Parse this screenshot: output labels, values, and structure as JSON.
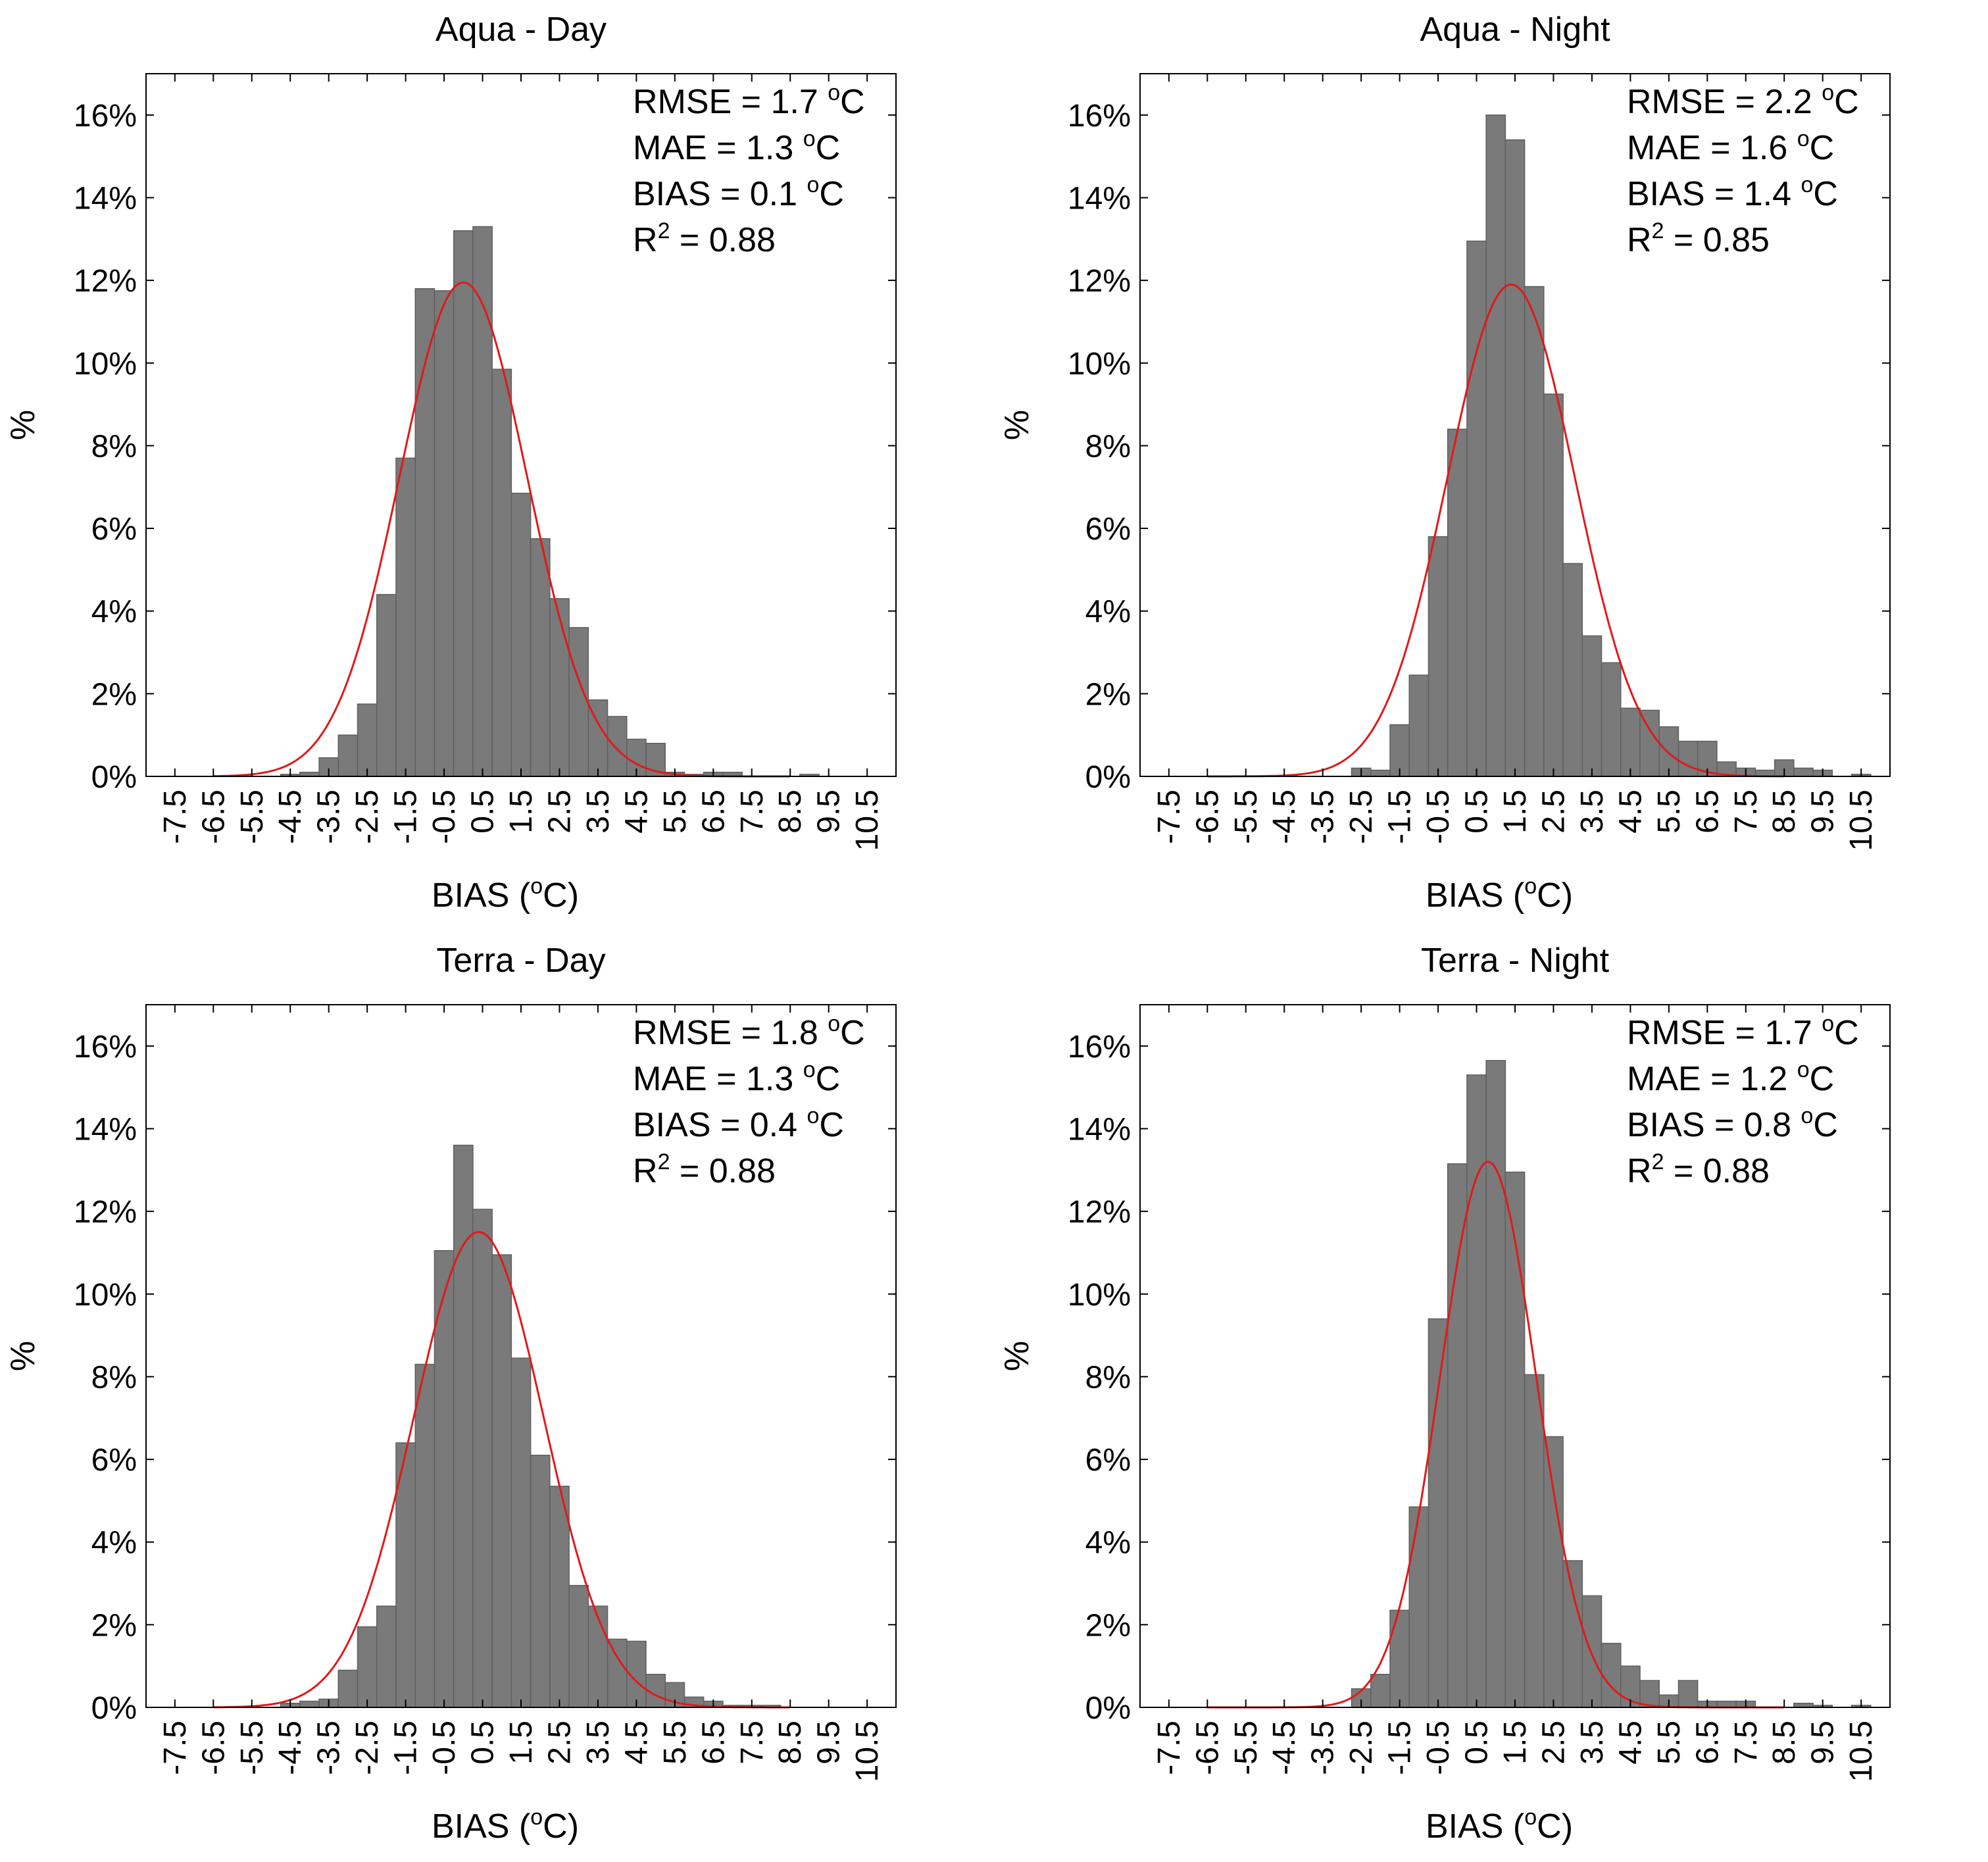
{
  "colors": {
    "bar": "#7a7a7a",
    "bar_edge": "#5f5f5f",
    "curve": "#e0191b",
    "axis": "#000000"
  },
  "chart_data": [
    {
      "type": "bar",
      "title": "Aqua - Day",
      "xlabel": "BIAS (°C)",
      "xlabel_main": "BIAS (",
      "xlabel_sup": "o",
      "xlabel_end": "C)",
      "ylabel": "%",
      "ylim": [
        0,
        17
      ],
      "yticks": [
        0,
        2,
        4,
        6,
        8,
        10,
        12,
        14,
        16
      ],
      "ytick_labels": [
        "0%",
        "2%",
        "4%",
        "6%",
        "8%",
        "10%",
        "12%",
        "14%",
        "16%"
      ],
      "xlim": [
        -8.25,
        11.25
      ],
      "xticks": [
        -7.5,
        -6.5,
        -5.5,
        -4.5,
        -3.5,
        -2.5,
        -1.5,
        -0.5,
        0.5,
        1.5,
        2.5,
        3.5,
        4.5,
        5.5,
        6.5,
        7.5,
        8.5,
        9.5,
        10.5
      ],
      "xtick_labels": [
        "-7.5",
        "-6.5",
        "-5.5",
        "-4.5",
        "-3.5",
        "-2.5",
        "-1.5",
        "-0.5",
        "0.5",
        "1.5",
        "2.5",
        "3.5",
        "4.5",
        "5.5",
        "6.5",
        "7.5",
        "8.5",
        "9.5",
        "10.5"
      ],
      "bin_width": 0.5,
      "bin_centers": [
        -7.5,
        -7,
        -6.5,
        -6,
        -5.5,
        -5,
        -4.5,
        -4,
        -3.5,
        -3,
        -2.5,
        -2,
        -1.5,
        -1,
        -0.5,
        0,
        0.5,
        1,
        1.5,
        2,
        2.5,
        3,
        3.5,
        4,
        4.5,
        5,
        5.5,
        6,
        6.5,
        7,
        7.5,
        8,
        8.5,
        9,
        9.5,
        10,
        10.5
      ],
      "values": [
        0,
        0,
        0,
        0,
        0,
        0,
        0.05,
        0.1,
        0.45,
        1.0,
        1.75,
        4.4,
        7.7,
        11.8,
        11.75,
        13.2,
        13.3,
        9.85,
        6.85,
        5.75,
        4.3,
        3.6,
        1.85,
        1.45,
        0.9,
        0.8,
        0.1,
        0.05,
        0.1,
        0.1,
        0,
        0,
        0,
        0.05,
        0,
        0,
        0
      ],
      "normal_fit": {
        "mean": 0.0,
        "sd": 1.66,
        "peak": 11.95
      },
      "stats": {
        "rmse": "RMSE = 1.7 ",
        "mae": "MAE = 1.3 ",
        "bias": "BIAS = 0.1 ",
        "unit_sup": "o",
        "unit": "C",
        "r2_main": "R",
        "r2_sup": "2",
        "r2_value": " = 0.88"
      }
    },
    {
      "type": "bar",
      "title": "Aqua - Night",
      "xlabel": "BIAS (°C)",
      "xlabel_main": "BIAS (",
      "xlabel_sup": "o",
      "xlabel_end": "C)",
      "ylabel": "%",
      "ylim": [
        0,
        17
      ],
      "yticks": [
        0,
        2,
        4,
        6,
        8,
        10,
        12,
        14,
        16
      ],
      "ytick_labels": [
        "0%",
        "2%",
        "4%",
        "6%",
        "8%",
        "10%",
        "12%",
        "14%",
        "16%"
      ],
      "xlim": [
        -8.25,
        11.25
      ],
      "xticks": [
        -7.5,
        -6.5,
        -5.5,
        -4.5,
        -3.5,
        -2.5,
        -1.5,
        -0.5,
        0.5,
        1.5,
        2.5,
        3.5,
        4.5,
        5.5,
        6.5,
        7.5,
        8.5,
        9.5,
        10.5
      ],
      "xtick_labels": [
        "-7.5",
        "-6.5",
        "-5.5",
        "-4.5",
        "-3.5",
        "-2.5",
        "-1.5",
        "-0.5",
        "0.5",
        "1.5",
        "2.5",
        "3.5",
        "4.5",
        "5.5",
        "6.5",
        "7.5",
        "8.5",
        "9.5",
        "10.5"
      ],
      "bin_width": 0.5,
      "bin_centers": [
        -7.5,
        -7,
        -6.5,
        -6,
        -5.5,
        -5,
        -4.5,
        -4,
        -3.5,
        -3,
        -2.5,
        -2,
        -1.5,
        -1,
        -0.5,
        0,
        0.5,
        1,
        1.5,
        2,
        2.5,
        3,
        3.5,
        4,
        4.5,
        5,
        5.5,
        6,
        6.5,
        7,
        7.5,
        8,
        8.5,
        9,
        9.5,
        10,
        10.5
      ],
      "values": [
        0,
        0,
        0,
        0,
        0,
        0,
        0,
        0,
        0,
        0,
        0.2,
        0.15,
        1.25,
        2.45,
        5.8,
        8.4,
        12.95,
        16.0,
        15.4,
        11.85,
        9.25,
        5.15,
        3.4,
        2.75,
        1.65,
        1.6,
        1.2,
        0.85,
        0.85,
        0.35,
        0.2,
        0.15,
        0.4,
        0.2,
        0.15,
        0,
        0.05
      ],
      "normal_fit": {
        "mean": 1.4,
        "sd": 1.66,
        "peak": 11.9
      },
      "stats": {
        "rmse": "RMSE = 2.2 ",
        "mae": "MAE = 1.6 ",
        "bias": "BIAS = 1.4 ",
        "unit_sup": "o",
        "unit": "C",
        "r2_main": "R",
        "r2_sup": "2",
        "r2_value": " = 0.85"
      }
    },
    {
      "type": "bar",
      "title": "Terra - Day",
      "xlabel": "BIAS (°C)",
      "xlabel_main": "BIAS (",
      "xlabel_sup": "o",
      "xlabel_end": "C)",
      "ylabel": "%",
      "ylim": [
        0,
        17
      ],
      "yticks": [
        0,
        2,
        4,
        6,
        8,
        10,
        12,
        14,
        16
      ],
      "ytick_labels": [
        "0%",
        "2%",
        "4%",
        "6%",
        "8%",
        "10%",
        "12%",
        "14%",
        "16%"
      ],
      "xlim": [
        -8.25,
        11.25
      ],
      "xticks": [
        -7.5,
        -6.5,
        -5.5,
        -4.5,
        -3.5,
        -2.5,
        -1.5,
        -0.5,
        0.5,
        1.5,
        2.5,
        3.5,
        4.5,
        5.5,
        6.5,
        7.5,
        8.5,
        9.5,
        10.5
      ],
      "xtick_labels": [
        "-7.5",
        "-6.5",
        "-5.5",
        "-4.5",
        "-3.5",
        "-2.5",
        "-1.5",
        "-0.5",
        "0.5",
        "1.5",
        "2.5",
        "3.5",
        "4.5",
        "5.5",
        "6.5",
        "7.5",
        "8.5",
        "9.5",
        "10.5"
      ],
      "bin_width": 0.5,
      "bin_centers": [
        -7.5,
        -7,
        -6.5,
        -6,
        -5.5,
        -5,
        -4.5,
        -4,
        -3.5,
        -3,
        -2.5,
        -2,
        -1.5,
        -1,
        -0.5,
        0,
        0.5,
        1,
        1.5,
        2,
        2.5,
        3,
        3.5,
        4,
        4.5,
        5,
        5.5,
        6,
        6.5,
        7,
        7.5,
        8,
        8.5,
        9,
        9.5,
        10,
        10.5
      ],
      "values": [
        0,
        0,
        0,
        0,
        0,
        0,
        0.1,
        0.15,
        0.2,
        0.9,
        1.95,
        2.45,
        6.4,
        8.3,
        11.05,
        13.6,
        12.05,
        10.95,
        8.45,
        6.1,
        5.35,
        2.95,
        2.45,
        1.65,
        1.6,
        0.8,
        0.6,
        0.25,
        0.15,
        0.05,
        0.05,
        0.05,
        0,
        0,
        0,
        0,
        0
      ],
      "normal_fit": {
        "mean": 0.4,
        "sd": 1.7,
        "peak": 11.5
      },
      "stats": {
        "rmse": "RMSE = 1.8 ",
        "mae": "MAE = 1.3 ",
        "bias": "BIAS = 0.4 ",
        "unit_sup": "o",
        "unit": "C",
        "r2_main": "R",
        "r2_sup": "2",
        "r2_value": " = 0.88"
      }
    },
    {
      "type": "bar",
      "title": "Terra - Night",
      "xlabel": "BIAS (°C)",
      "xlabel_main": "BIAS (",
      "xlabel_sup": "o",
      "xlabel_end": "C)",
      "ylabel": "%",
      "ylim": [
        0,
        17
      ],
      "yticks": [
        0,
        2,
        4,
        6,
        8,
        10,
        12,
        14,
        16
      ],
      "ytick_labels": [
        "0%",
        "2%",
        "4%",
        "6%",
        "8%",
        "10%",
        "12%",
        "14%",
        "16%"
      ],
      "xlim": [
        -8.25,
        11.25
      ],
      "xticks": [
        -7.5,
        -6.5,
        -5.5,
        -4.5,
        -3.5,
        -2.5,
        -1.5,
        -0.5,
        0.5,
        1.5,
        2.5,
        3.5,
        4.5,
        5.5,
        6.5,
        7.5,
        8.5,
        9.5,
        10.5
      ],
      "xtick_labels": [
        "-7.5",
        "-6.5",
        "-5.5",
        "-4.5",
        "-3.5",
        "-2.5",
        "-1.5",
        "-0.5",
        "0.5",
        "1.5",
        "2.5",
        "3.5",
        "4.5",
        "5.5",
        "6.5",
        "7.5",
        "8.5",
        "9.5",
        "10.5"
      ],
      "bin_width": 0.5,
      "bin_centers": [
        -7.5,
        -7,
        -6.5,
        -6,
        -5.5,
        -5,
        -4.5,
        -4,
        -3.5,
        -3,
        -2.5,
        -2,
        -1.5,
        -1,
        -0.5,
        0,
        0.5,
        1,
        1.5,
        2,
        2.5,
        3,
        3.5,
        4,
        4.5,
        5,
        5.5,
        6,
        6.5,
        7,
        7.5,
        8,
        8.5,
        9,
        9.5,
        10,
        10.5
      ],
      "values": [
        0,
        0,
        0,
        0,
        0,
        0,
        0,
        0,
        0,
        0,
        0.45,
        0.8,
        2.35,
        4.85,
        9.4,
        13.15,
        15.3,
        15.65,
        12.95,
        8.05,
        6.55,
        3.55,
        2.7,
        1.55,
        1.0,
        0.65,
        0.3,
        0.65,
        0.15,
        0.15,
        0.15,
        0,
        0,
        0.1,
        0.05,
        0,
        0.05
      ],
      "normal_fit": {
        "mean": 0.8,
        "sd": 1.25,
        "peak": 13.2
      },
      "stats": {
        "rmse": "RMSE = 1.7 ",
        "mae": "MAE = 1.2 ",
        "bias": "BIAS = 0.8 ",
        "unit_sup": "o",
        "unit": "C",
        "r2_main": "R",
        "r2_sup": "2",
        "r2_value": " = 0.88"
      }
    }
  ]
}
